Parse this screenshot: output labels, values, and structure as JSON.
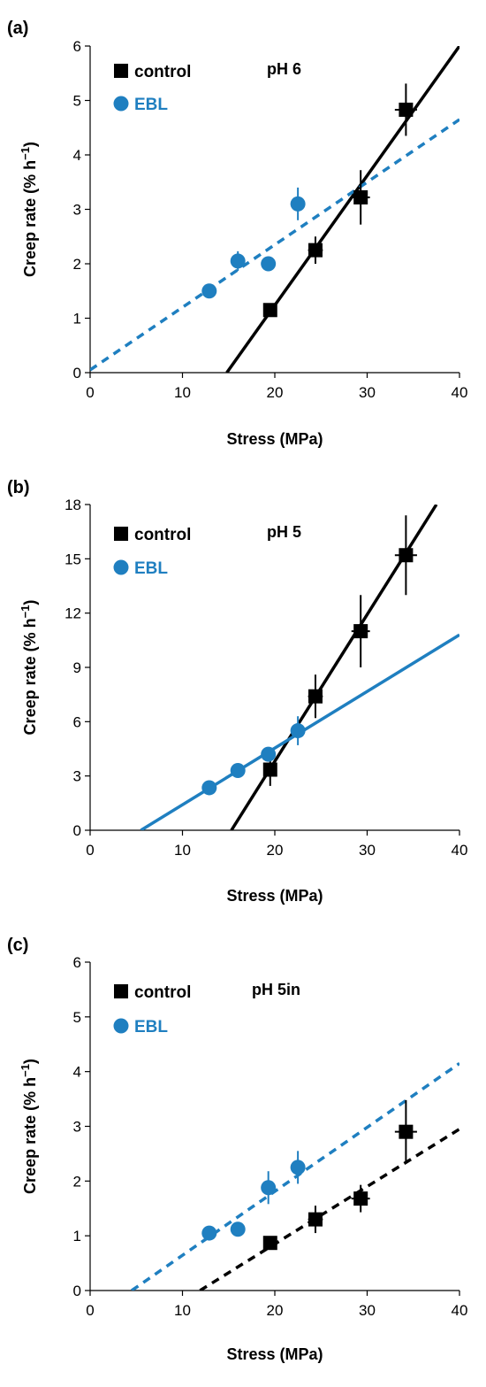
{
  "colors": {
    "control": "#000000",
    "ebl": "#1f7fc0"
  },
  "chart_data": [
    {
      "type": "scatter",
      "panel": "(a)",
      "annotation": "pH 6",
      "xlabel": "Stress (MPa)",
      "ylabel_main": "Creep rate (% h",
      "ylabel_sup": "−1",
      "ylabel_close": ")",
      "xlim": [
        0,
        40
      ],
      "ylim": [
        0,
        6
      ],
      "xticks": [
        "0",
        "10",
        "20",
        "30",
        "40"
      ],
      "yticks": [
        "0",
        "1",
        "2",
        "3",
        "4",
        "5",
        "6"
      ],
      "series": [
        {
          "name": "control",
          "marker": "square",
          "color": "#000000",
          "points": [
            {
              "x": 19.5,
              "y": 1.15,
              "xerr": 0.6,
              "yerr": 0.12
            },
            {
              "x": 24.4,
              "y": 2.25,
              "xerr": 0.8,
              "yerr": 0.25
            },
            {
              "x": 29.3,
              "y": 3.22,
              "xerr": 1.0,
              "yerr": 0.5
            },
            {
              "x": 34.2,
              "y": 4.83,
              "xerr": 1.2,
              "yerr": 0.48
            }
          ],
          "fit": {
            "x": [
              14.8,
              40
            ],
            "y": [
              0,
              6.0
            ],
            "style": "solid"
          }
        },
        {
          "name": "EBL",
          "marker": "circle",
          "color": "#1f7fc0",
          "points": [
            {
              "x": 12.9,
              "y": 1.5,
              "xerr": 0,
              "yerr": 0.1
            },
            {
              "x": 16.0,
              "y": 2.05,
              "xerr": 0,
              "yerr": 0.18
            },
            {
              "x": 19.3,
              "y": 2.0,
              "xerr": 0,
              "yerr": 0.08
            },
            {
              "x": 22.5,
              "y": 3.1,
              "xerr": 0,
              "yerr": 0.3
            }
          ],
          "fit": {
            "x": [
              0,
              40
            ],
            "y": [
              0.05,
              4.65
            ],
            "style": "dashed"
          }
        }
      ]
    },
    {
      "type": "scatter",
      "panel": "(b)",
      "annotation": "pH 5",
      "xlabel": "Stress (MPa)",
      "ylabel_main": "Creep rate (% h",
      "ylabel_sup": "−1",
      "ylabel_close": ")",
      "xlim": [
        0,
        40
      ],
      "ylim": [
        0,
        18
      ],
      "xticks": [
        "0",
        "10",
        "20",
        "30",
        "40"
      ],
      "yticks": [
        "0",
        "3",
        "6",
        "9",
        "12",
        "15",
        "18"
      ],
      "series": [
        {
          "name": "control",
          "marker": "square",
          "color": "#000000",
          "points": [
            {
              "x": 19.5,
              "y": 3.35,
              "xerr": 0.6,
              "yerr": 0.9
            },
            {
              "x": 24.4,
              "y": 7.4,
              "xerr": 0.8,
              "yerr": 1.2
            },
            {
              "x": 29.3,
              "y": 11.0,
              "xerr": 1.0,
              "yerr": 2.0
            },
            {
              "x": 34.2,
              "y": 15.2,
              "xerr": 1.2,
              "yerr": 2.2
            }
          ],
          "fit": {
            "x": [
              15.3,
              37.5
            ],
            "y": [
              0,
              18.0
            ],
            "style": "solid"
          }
        },
        {
          "name": "EBL",
          "marker": "circle",
          "color": "#1f7fc0",
          "points": [
            {
              "x": 12.9,
              "y": 2.35,
              "xerr": 0,
              "yerr": 0.2
            },
            {
              "x": 16.0,
              "y": 3.3,
              "xerr": 0,
              "yerr": 0.2
            },
            {
              "x": 19.3,
              "y": 4.2,
              "xerr": 0,
              "yerr": 0.3
            },
            {
              "x": 22.5,
              "y": 5.5,
              "xerr": 0,
              "yerr": 0.8
            }
          ],
          "fit": {
            "x": [
              5.5,
              40
            ],
            "y": [
              0,
              10.8
            ],
            "style": "solid"
          }
        }
      ]
    },
    {
      "type": "scatter",
      "panel": "(c)",
      "annotation": "pH 5in",
      "xlabel": "Stress (MPa)",
      "ylabel_main": "Creep rate (% h",
      "ylabel_sup": "−1",
      "ylabel_close": ")",
      "xlim": [
        0,
        40
      ],
      "ylim": [
        0,
        6
      ],
      "xticks": [
        "0",
        "10",
        "20",
        "30",
        "40"
      ],
      "yticks": [
        "0",
        "1",
        "2",
        "3",
        "4",
        "5",
        "6"
      ],
      "series": [
        {
          "name": "control",
          "marker": "square",
          "color": "#000000",
          "points": [
            {
              "x": 19.5,
              "y": 0.87,
              "xerr": 0.6,
              "yerr": 0.08
            },
            {
              "x": 24.4,
              "y": 1.3,
              "xerr": 0.8,
              "yerr": 0.25
            },
            {
              "x": 29.3,
              "y": 1.68,
              "xerr": 1.0,
              "yerr": 0.25
            },
            {
              "x": 34.2,
              "y": 2.9,
              "xerr": 1.2,
              "yerr": 0.58
            }
          ],
          "fit": {
            "x": [
              11.9,
              40
            ],
            "y": [
              0,
              2.95
            ],
            "style": "dashed"
          }
        },
        {
          "name": "EBL",
          "marker": "circle",
          "color": "#1f7fc0",
          "points": [
            {
              "x": 12.9,
              "y": 1.05,
              "xerr": 0,
              "yerr": 0.06
            },
            {
              "x": 16.0,
              "y": 1.12,
              "xerr": 0,
              "yerr": 0.1
            },
            {
              "x": 19.3,
              "y": 1.88,
              "xerr": 0,
              "yerr": 0.3
            },
            {
              "x": 22.5,
              "y": 2.25,
              "xerr": 0,
              "yerr": 0.3
            }
          ],
          "fit": {
            "x": [
              4.5,
              40
            ],
            "y": [
              0,
              4.15
            ],
            "style": "dashed"
          }
        }
      ]
    }
  ]
}
